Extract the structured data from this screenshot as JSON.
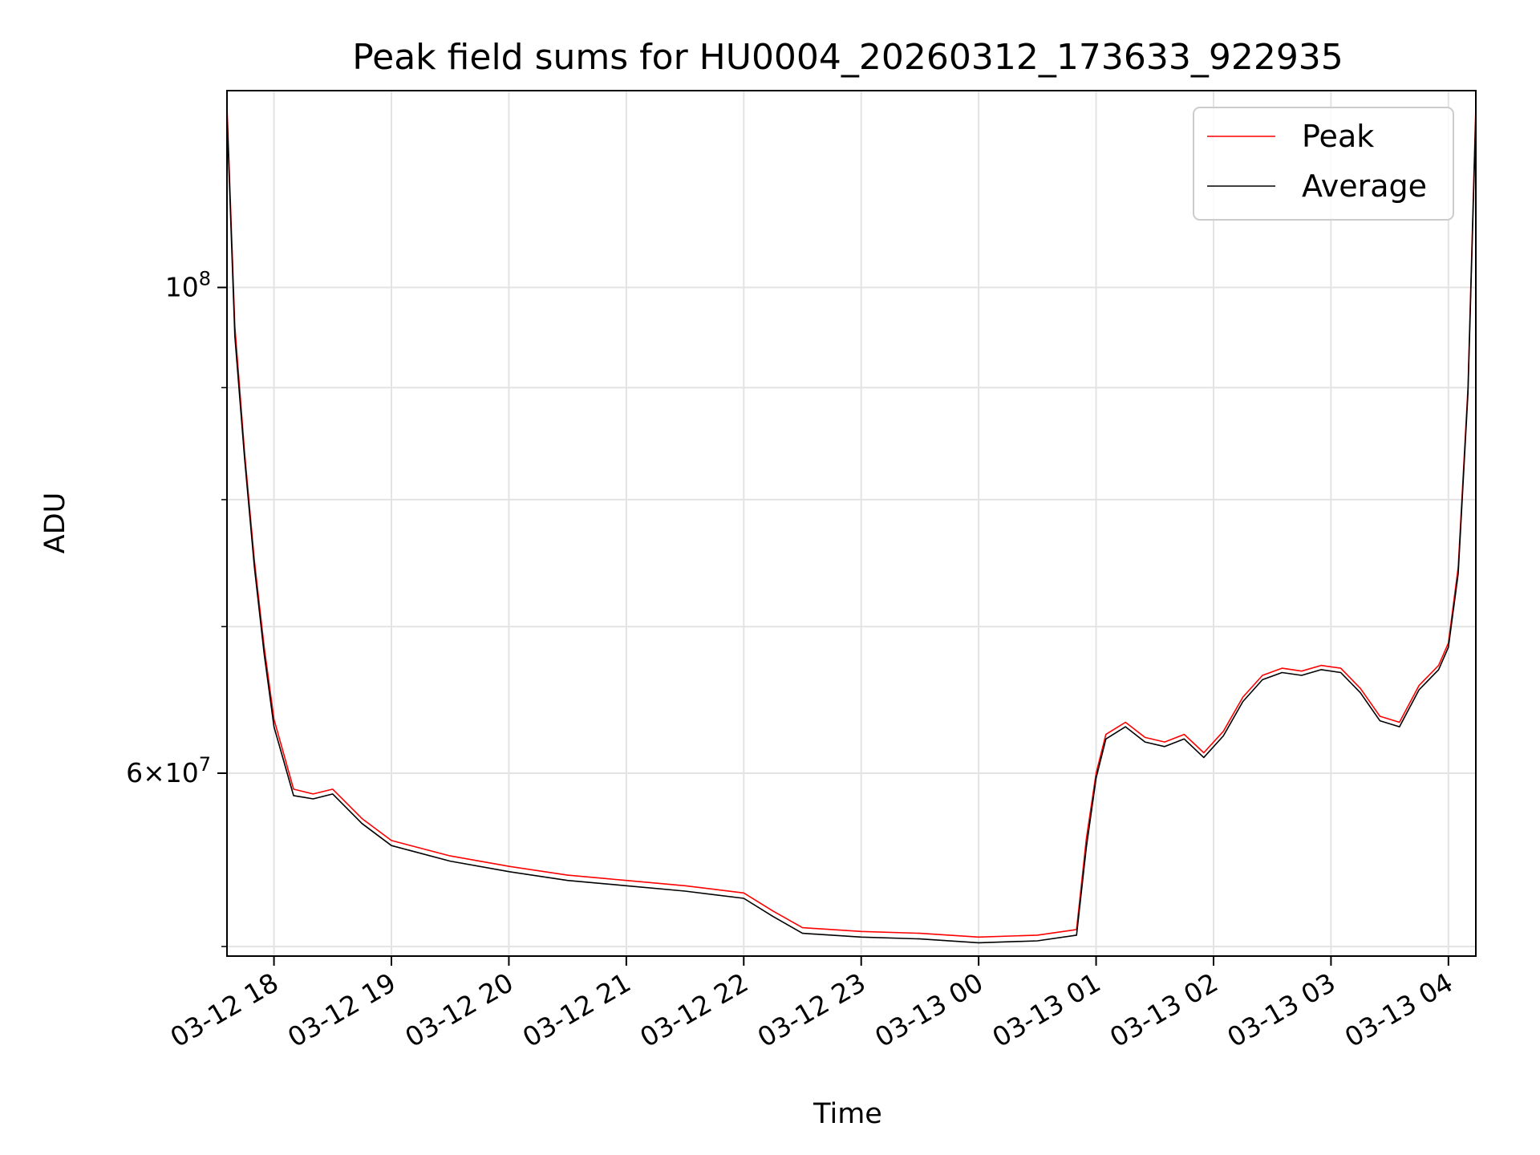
{
  "chart_data": {
    "type": "line",
    "title": "Peak field sums for HU0004_20260312_173633_922935",
    "xlabel": "Time",
    "ylabel": "ADU",
    "yscale": "log",
    "grid": true,
    "legend_position": "top-right",
    "xlim": [
      "2026-03-12 17:36",
      "2026-03-13 04:14"
    ],
    "ylim": [
      49500000,
      123000000
    ],
    "x_ticks": [
      {
        "value": "2026-03-12 18:00",
        "label": "03-12 18"
      },
      {
        "value": "2026-03-12 19:00",
        "label": "03-12 19"
      },
      {
        "value": "2026-03-12 20:00",
        "label": "03-12 20"
      },
      {
        "value": "2026-03-12 21:00",
        "label": "03-12 21"
      },
      {
        "value": "2026-03-12 22:00",
        "label": "03-12 22"
      },
      {
        "value": "2026-03-12 23:00",
        "label": "03-12 23"
      },
      {
        "value": "2026-03-13 00:00",
        "label": "03-13 00"
      },
      {
        "value": "2026-03-13 01:00",
        "label": "03-13 01"
      },
      {
        "value": "2026-03-13 02:00",
        "label": "03-13 02"
      },
      {
        "value": "2026-03-13 03:00",
        "label": "03-13 03"
      },
      {
        "value": "2026-03-13 04:00",
        "label": "03-13 04"
      }
    ],
    "y_major_ticks": [
      {
        "value": 100000000,
        "base": "10",
        "exp": "8"
      },
      {
        "value": 60000000,
        "mant": "6",
        "base": "10",
        "exp": "7"
      }
    ],
    "y_minor_ticks": [
      50000000,
      70000000,
      80000000,
      90000000
    ],
    "series": [
      {
        "name": "Peak",
        "color": "#ff0000",
        "x": [
          "2026-03-12 17:36",
          "2026-03-12 17:40",
          "2026-03-12 17:45",
          "2026-03-12 17:50",
          "2026-03-12 17:55",
          "2026-03-12 18:00",
          "2026-03-12 18:10",
          "2026-03-12 18:20",
          "2026-03-12 18:30",
          "2026-03-12 18:45",
          "2026-03-12 19:00",
          "2026-03-12 19:30",
          "2026-03-12 20:00",
          "2026-03-12 20:30",
          "2026-03-12 21:00",
          "2026-03-12 21:30",
          "2026-03-12 22:00",
          "2026-03-12 22:15",
          "2026-03-12 22:30",
          "2026-03-12 23:00",
          "2026-03-12 23:30",
          "2026-03-13 00:00",
          "2026-03-13 00:30",
          "2026-03-13 00:50",
          "2026-03-13 00:55",
          "2026-03-13 01:00",
          "2026-03-13 01:05",
          "2026-03-13 01:15",
          "2026-03-13 01:25",
          "2026-03-13 01:35",
          "2026-03-13 01:45",
          "2026-03-13 01:55",
          "2026-03-13 02:05",
          "2026-03-13 02:15",
          "2026-03-13 02:25",
          "2026-03-13 02:35",
          "2026-03-13 02:45",
          "2026-03-13 02:55",
          "2026-03-13 03:05",
          "2026-03-13 03:15",
          "2026-03-13 03:25",
          "2026-03-13 03:35",
          "2026-03-13 03:45",
          "2026-03-13 03:55",
          "2026-03-13 04:00",
          "2026-03-13 04:05",
          "2026-03-13 04:10",
          "2026-03-13 04:14"
        ],
        "y": [
          121000000,
          96000000,
          84000000,
          75000000,
          68500000,
          63500000,
          59000000,
          58700000,
          59000000,
          57200000,
          55900000,
          55000000,
          54400000,
          53900000,
          53600000,
          53300000,
          52900000,
          51900000,
          51000000,
          50800000,
          50700000,
          50500000,
          50600000,
          50900000,
          56000000,
          60000000,
          62500000,
          63300000,
          62300000,
          62000000,
          62500000,
          61300000,
          62700000,
          65000000,
          66500000,
          67000000,
          66800000,
          67200000,
          67000000,
          65600000,
          63700000,
          63300000,
          65800000,
          67200000,
          68800000,
          74500000,
          90000000,
          121000000
        ]
      },
      {
        "name": "Average",
        "color": "#000000",
        "x": [
          "2026-03-12 17:36",
          "2026-03-12 17:40",
          "2026-03-12 17:45",
          "2026-03-12 17:50",
          "2026-03-12 17:55",
          "2026-03-12 18:00",
          "2026-03-12 18:10",
          "2026-03-12 18:20",
          "2026-03-12 18:30",
          "2026-03-12 18:45",
          "2026-03-12 19:00",
          "2026-03-12 19:30",
          "2026-03-12 20:00",
          "2026-03-12 20:30",
          "2026-03-12 21:00",
          "2026-03-12 21:30",
          "2026-03-12 22:00",
          "2026-03-12 22:15",
          "2026-03-12 22:30",
          "2026-03-12 23:00",
          "2026-03-12 23:30",
          "2026-03-13 00:00",
          "2026-03-13 00:30",
          "2026-03-13 00:50",
          "2026-03-13 00:55",
          "2026-03-13 01:00",
          "2026-03-13 01:05",
          "2026-03-13 01:15",
          "2026-03-13 01:25",
          "2026-03-13 01:35",
          "2026-03-13 01:45",
          "2026-03-13 01:55",
          "2026-03-13 02:05",
          "2026-03-13 02:15",
          "2026-03-13 02:25",
          "2026-03-13 02:35",
          "2026-03-13 02:45",
          "2026-03-13 02:55",
          "2026-03-13 03:05",
          "2026-03-13 03:15",
          "2026-03-13 03:25",
          "2026-03-13 03:35",
          "2026-03-13 03:45",
          "2026-03-13 03:55",
          "2026-03-13 04:00",
          "2026-03-13 04:05",
          "2026-03-13 04:10",
          "2026-03-13 04:14"
        ],
        "y": [
          120000000,
          95000000,
          83500000,
          74500000,
          68000000,
          63000000,
          58600000,
          58400000,
          58700000,
          56900000,
          55600000,
          54700000,
          54100000,
          53600000,
          53300000,
          53000000,
          52600000,
          51600000,
          50700000,
          50500000,
          50400000,
          50200000,
          50300000,
          50600000,
          55500000,
          59700000,
          62200000,
          63000000,
          62000000,
          61700000,
          62200000,
          61000000,
          62400000,
          64700000,
          66200000,
          66700000,
          66500000,
          66900000,
          66700000,
          65300000,
          63400000,
          63000000,
          65500000,
          66900000,
          68500000,
          74000000,
          89500000,
          120000000
        ]
      }
    ]
  }
}
